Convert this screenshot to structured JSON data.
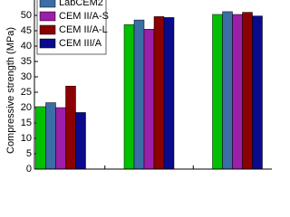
{
  "chart_data": {
    "type": "bar",
    "y_label": "Compressive strength (MPa)",
    "categories": [
      null,
      null,
      null
    ],
    "series": [
      {
        "name": null,
        "color": "#00c000",
        "values": [
          20.3,
          47,
          50.3
        ]
      },
      {
        "name": "LabCEM2",
        "color": "#3a6ea5",
        "values": [
          21.6,
          48.5,
          51.2
        ]
      },
      {
        "name": "CEM II/A-S",
        "color": "#9b1fa8",
        "values": [
          20,
          45.5,
          50.3
        ]
      },
      {
        "name": "CEM II/A-L",
        "color": "#8b0000",
        "values": [
          27,
          49.6,
          51
        ]
      },
      {
        "name": "CEM III/A",
        "color": "#0a0a8c",
        "values": [
          18.4,
          49.3,
          49.8
        ]
      }
    ],
    "ylim": [
      0,
      55
    ],
    "yticks": [
      0,
      5,
      10,
      15,
      20,
      25,
      30,
      35,
      40,
      45,
      50
    ]
  }
}
